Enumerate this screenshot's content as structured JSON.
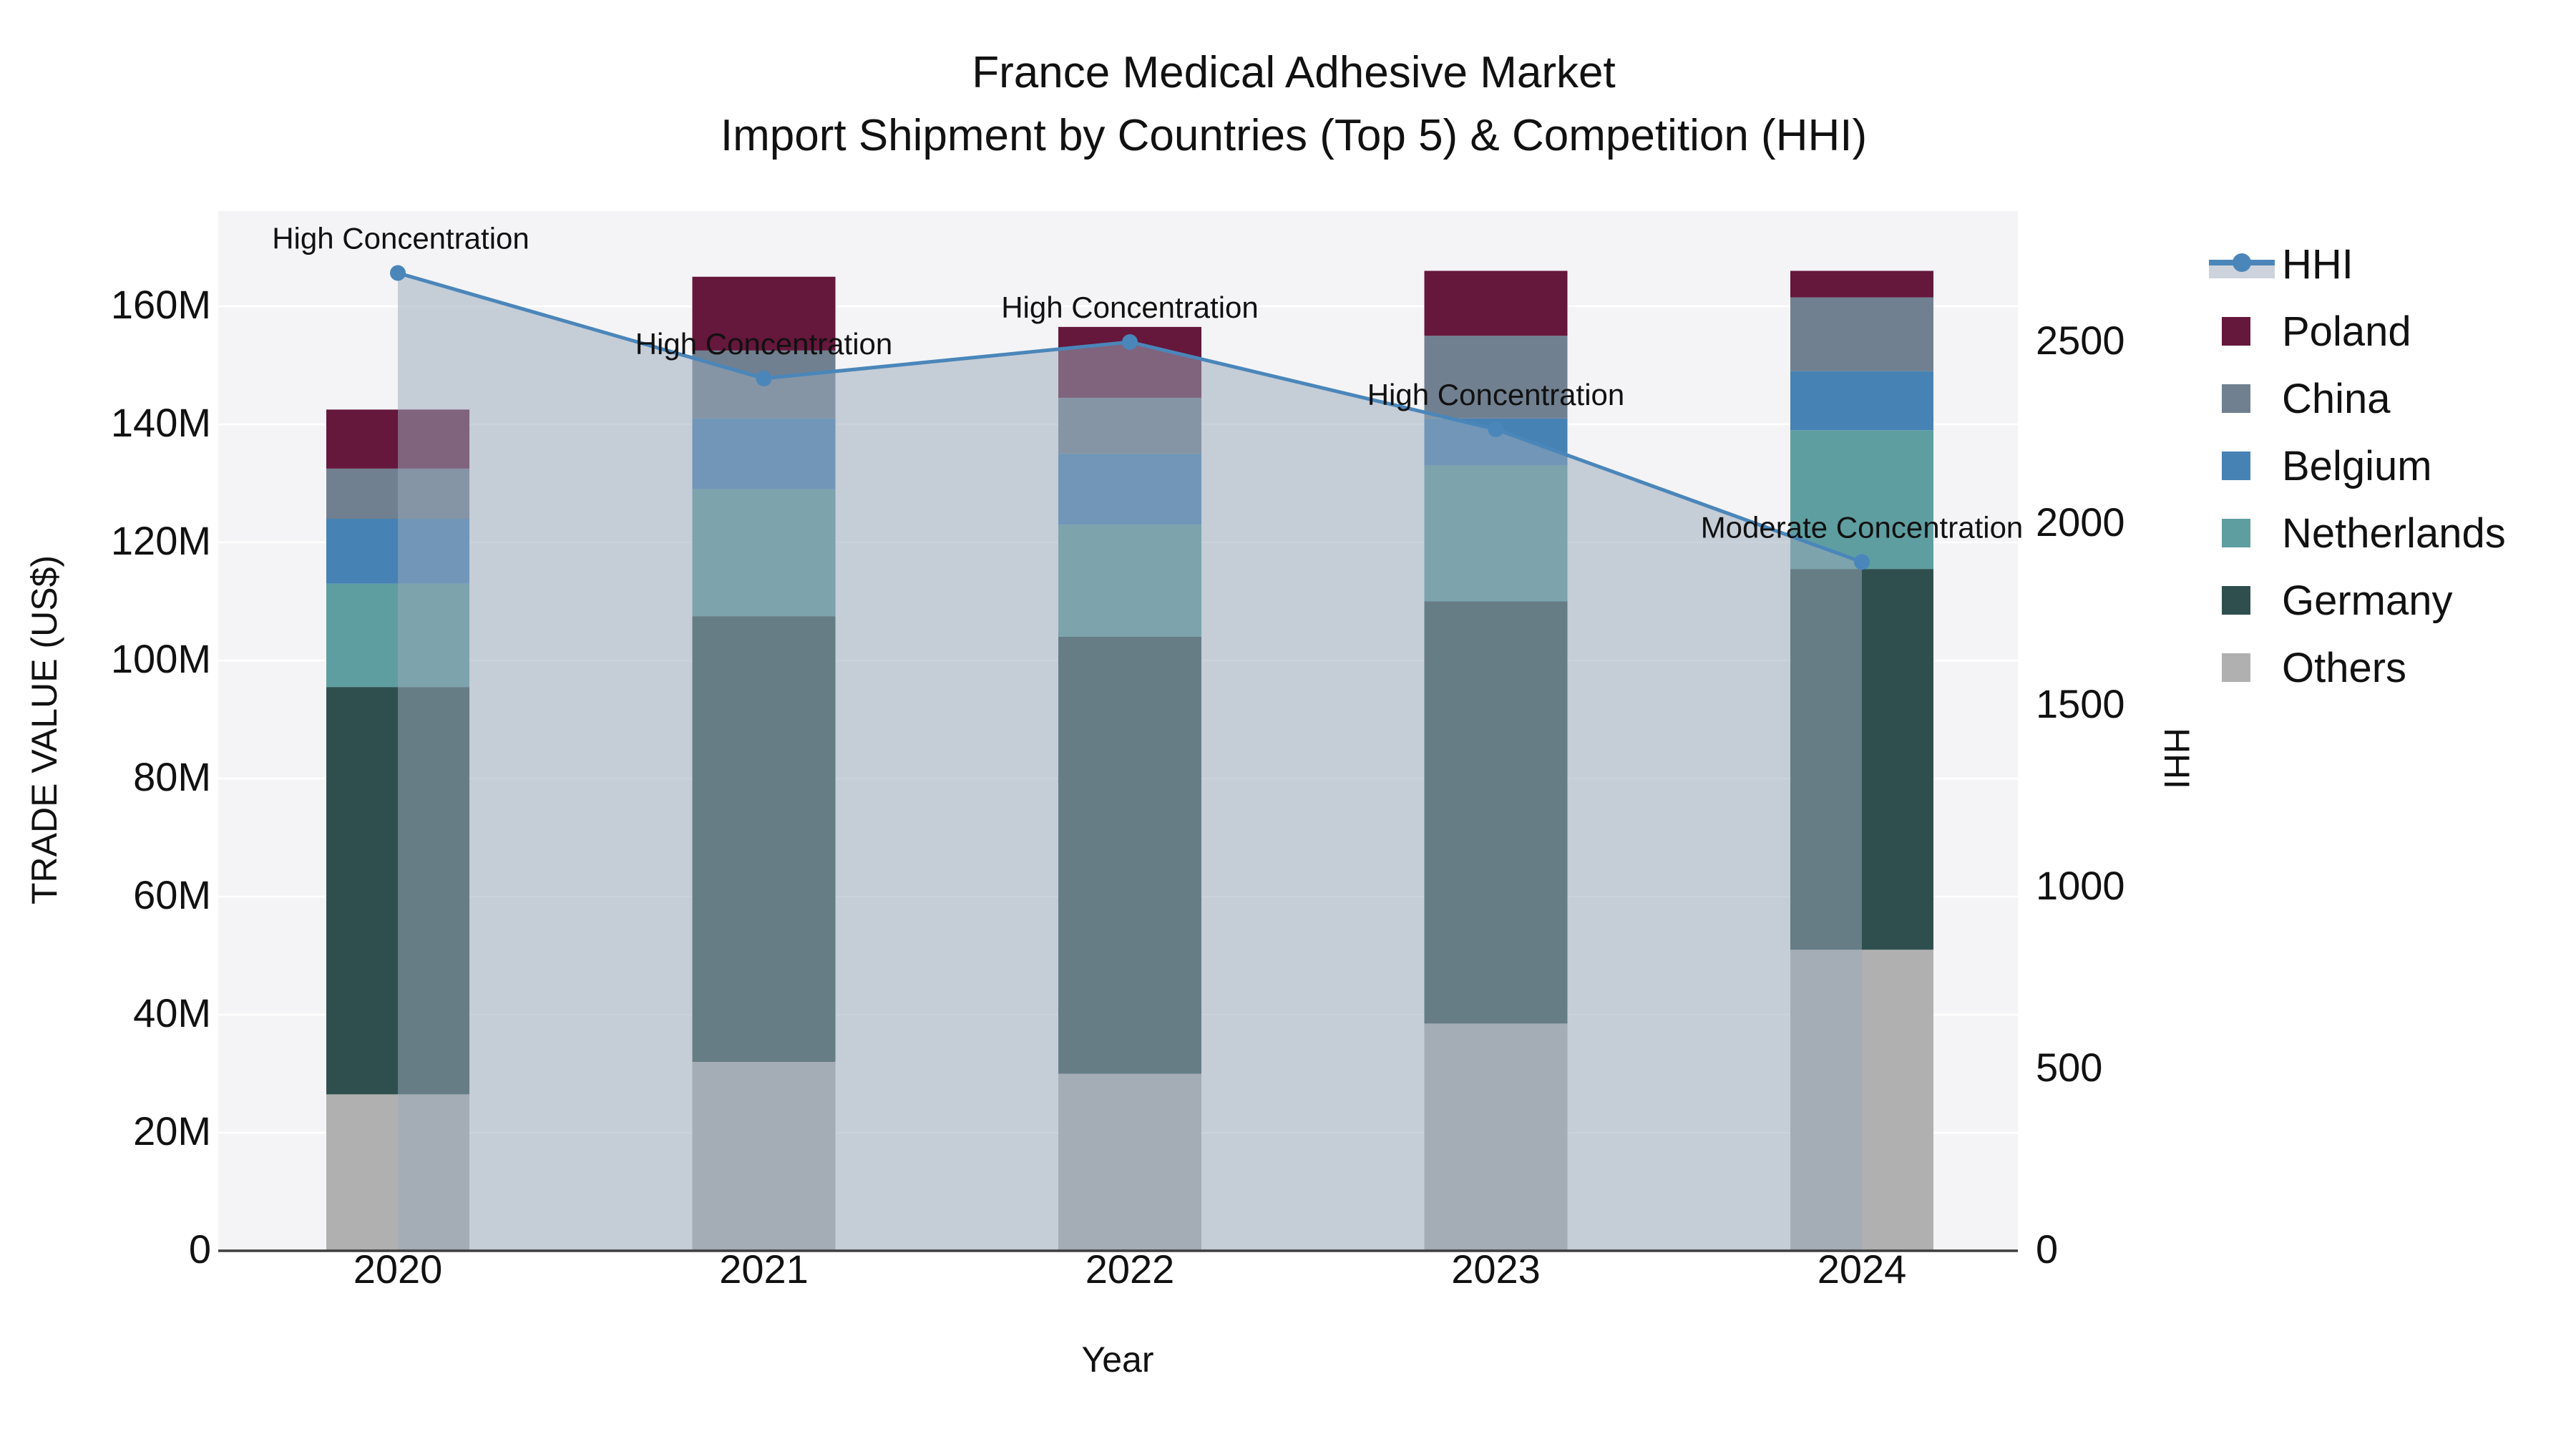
{
  "title": {
    "line1": "France Medical Adhesive Market",
    "line2": "Import Shipment by Countries (Top 5) & Competition (HHI)"
  },
  "axes": {
    "left_title": "TRADE VALUE (US$)",
    "right_title": "HHI",
    "x_title": "Year",
    "left_tick_labels": [
      "0",
      "20M",
      "40M",
      "60M",
      "80M",
      "100M",
      "120M",
      "140M",
      "160M"
    ],
    "right_tick_labels": [
      "0",
      "500",
      "1000",
      "1500",
      "2000",
      "2500"
    ]
  },
  "legend": {
    "items": [
      {
        "label": "HHI",
        "color": "#4a86ba",
        "kind": "line-area"
      },
      {
        "label": "Poland",
        "color": "#65173c",
        "kind": "square"
      },
      {
        "label": "China",
        "color": "#708090",
        "kind": "square"
      },
      {
        "label": "Belgium",
        "color": "#4682b4",
        "kind": "square"
      },
      {
        "label": "Netherlands",
        "color": "#5f9ea0",
        "kind": "square"
      },
      {
        "label": "Germany",
        "color": "#2f4f4f",
        "kind": "square"
      },
      {
        "label": "Others",
        "color": "#b0b0b0",
        "kind": "square"
      }
    ]
  },
  "colors": {
    "plot_bg": "#f4f4f6",
    "gridline": "#ffffff",
    "axis_line": "#3f3f3f",
    "hhi_line": "#4a86ba",
    "hhi_area_fill": "rgba(154,168,186,0.52)",
    "annotation_text": "#000000"
  },
  "chart_data": {
    "type": "bar",
    "subtype": "stacked-bar with secondary-axis line+area (HHI)",
    "title": "France Medical Adhesive Market — Import Shipment by Countries (Top 5) & Competition (HHI)",
    "xlabel": "Year",
    "ylabel_left": "TRADE VALUE (US$)",
    "ylabel_right": "HHI",
    "categories": [
      "2020",
      "2021",
      "2022",
      "2023",
      "2024"
    ],
    "unit": "million US$",
    "ylim_left_M": [
      0,
      176
    ],
    "ylim_right": [
      0,
      2858
    ],
    "grid": "horizontal, 20M steps",
    "legend_position": "right",
    "series": [
      {
        "name": "Others",
        "stack_order": 1,
        "color": "#b0b0b0",
        "values": [
          26.5,
          32.0,
          30.0,
          38.5,
          51.0
        ]
      },
      {
        "name": "Germany",
        "stack_order": 2,
        "color": "#2f4f4f",
        "values": [
          69.0,
          75.5,
          74.0,
          71.5,
          64.5
        ]
      },
      {
        "name": "Netherlands",
        "stack_order": 3,
        "color": "#5f9ea0",
        "values": [
          17.5,
          21.5,
          19.0,
          23.0,
          23.5
        ]
      },
      {
        "name": "Belgium",
        "stack_order": 4,
        "color": "#4682b4",
        "values": [
          11.0,
          12.0,
          12.0,
          8.0,
          10.0
        ]
      },
      {
        "name": "China",
        "stack_order": 5,
        "color": "#708090",
        "values": [
          8.5,
          11.5,
          9.5,
          14.0,
          12.5
        ]
      },
      {
        "name": "Poland",
        "stack_order": 6,
        "color": "#65173c",
        "values": [
          10.0,
          12.5,
          12.0,
          11.0,
          4.5
        ]
      }
    ],
    "stacked_totals_M": [
      142.5,
      165.0,
      156.5,
      166.0,
      166.0
    ],
    "hhi": {
      "name": "HHI",
      "values": [
        2690,
        2400,
        2500,
        2260,
        1895
      ],
      "annotations": [
        "High Concentration",
        "High Concentration",
        "High Concentration",
        "High Concentration",
        "Moderate Concentration"
      ]
    },
    "left_ticks_M": [
      0,
      20,
      40,
      60,
      80,
      100,
      120,
      140,
      160
    ],
    "right_ticks": [
      0,
      500,
      1000,
      1500,
      2000,
      2500
    ]
  }
}
